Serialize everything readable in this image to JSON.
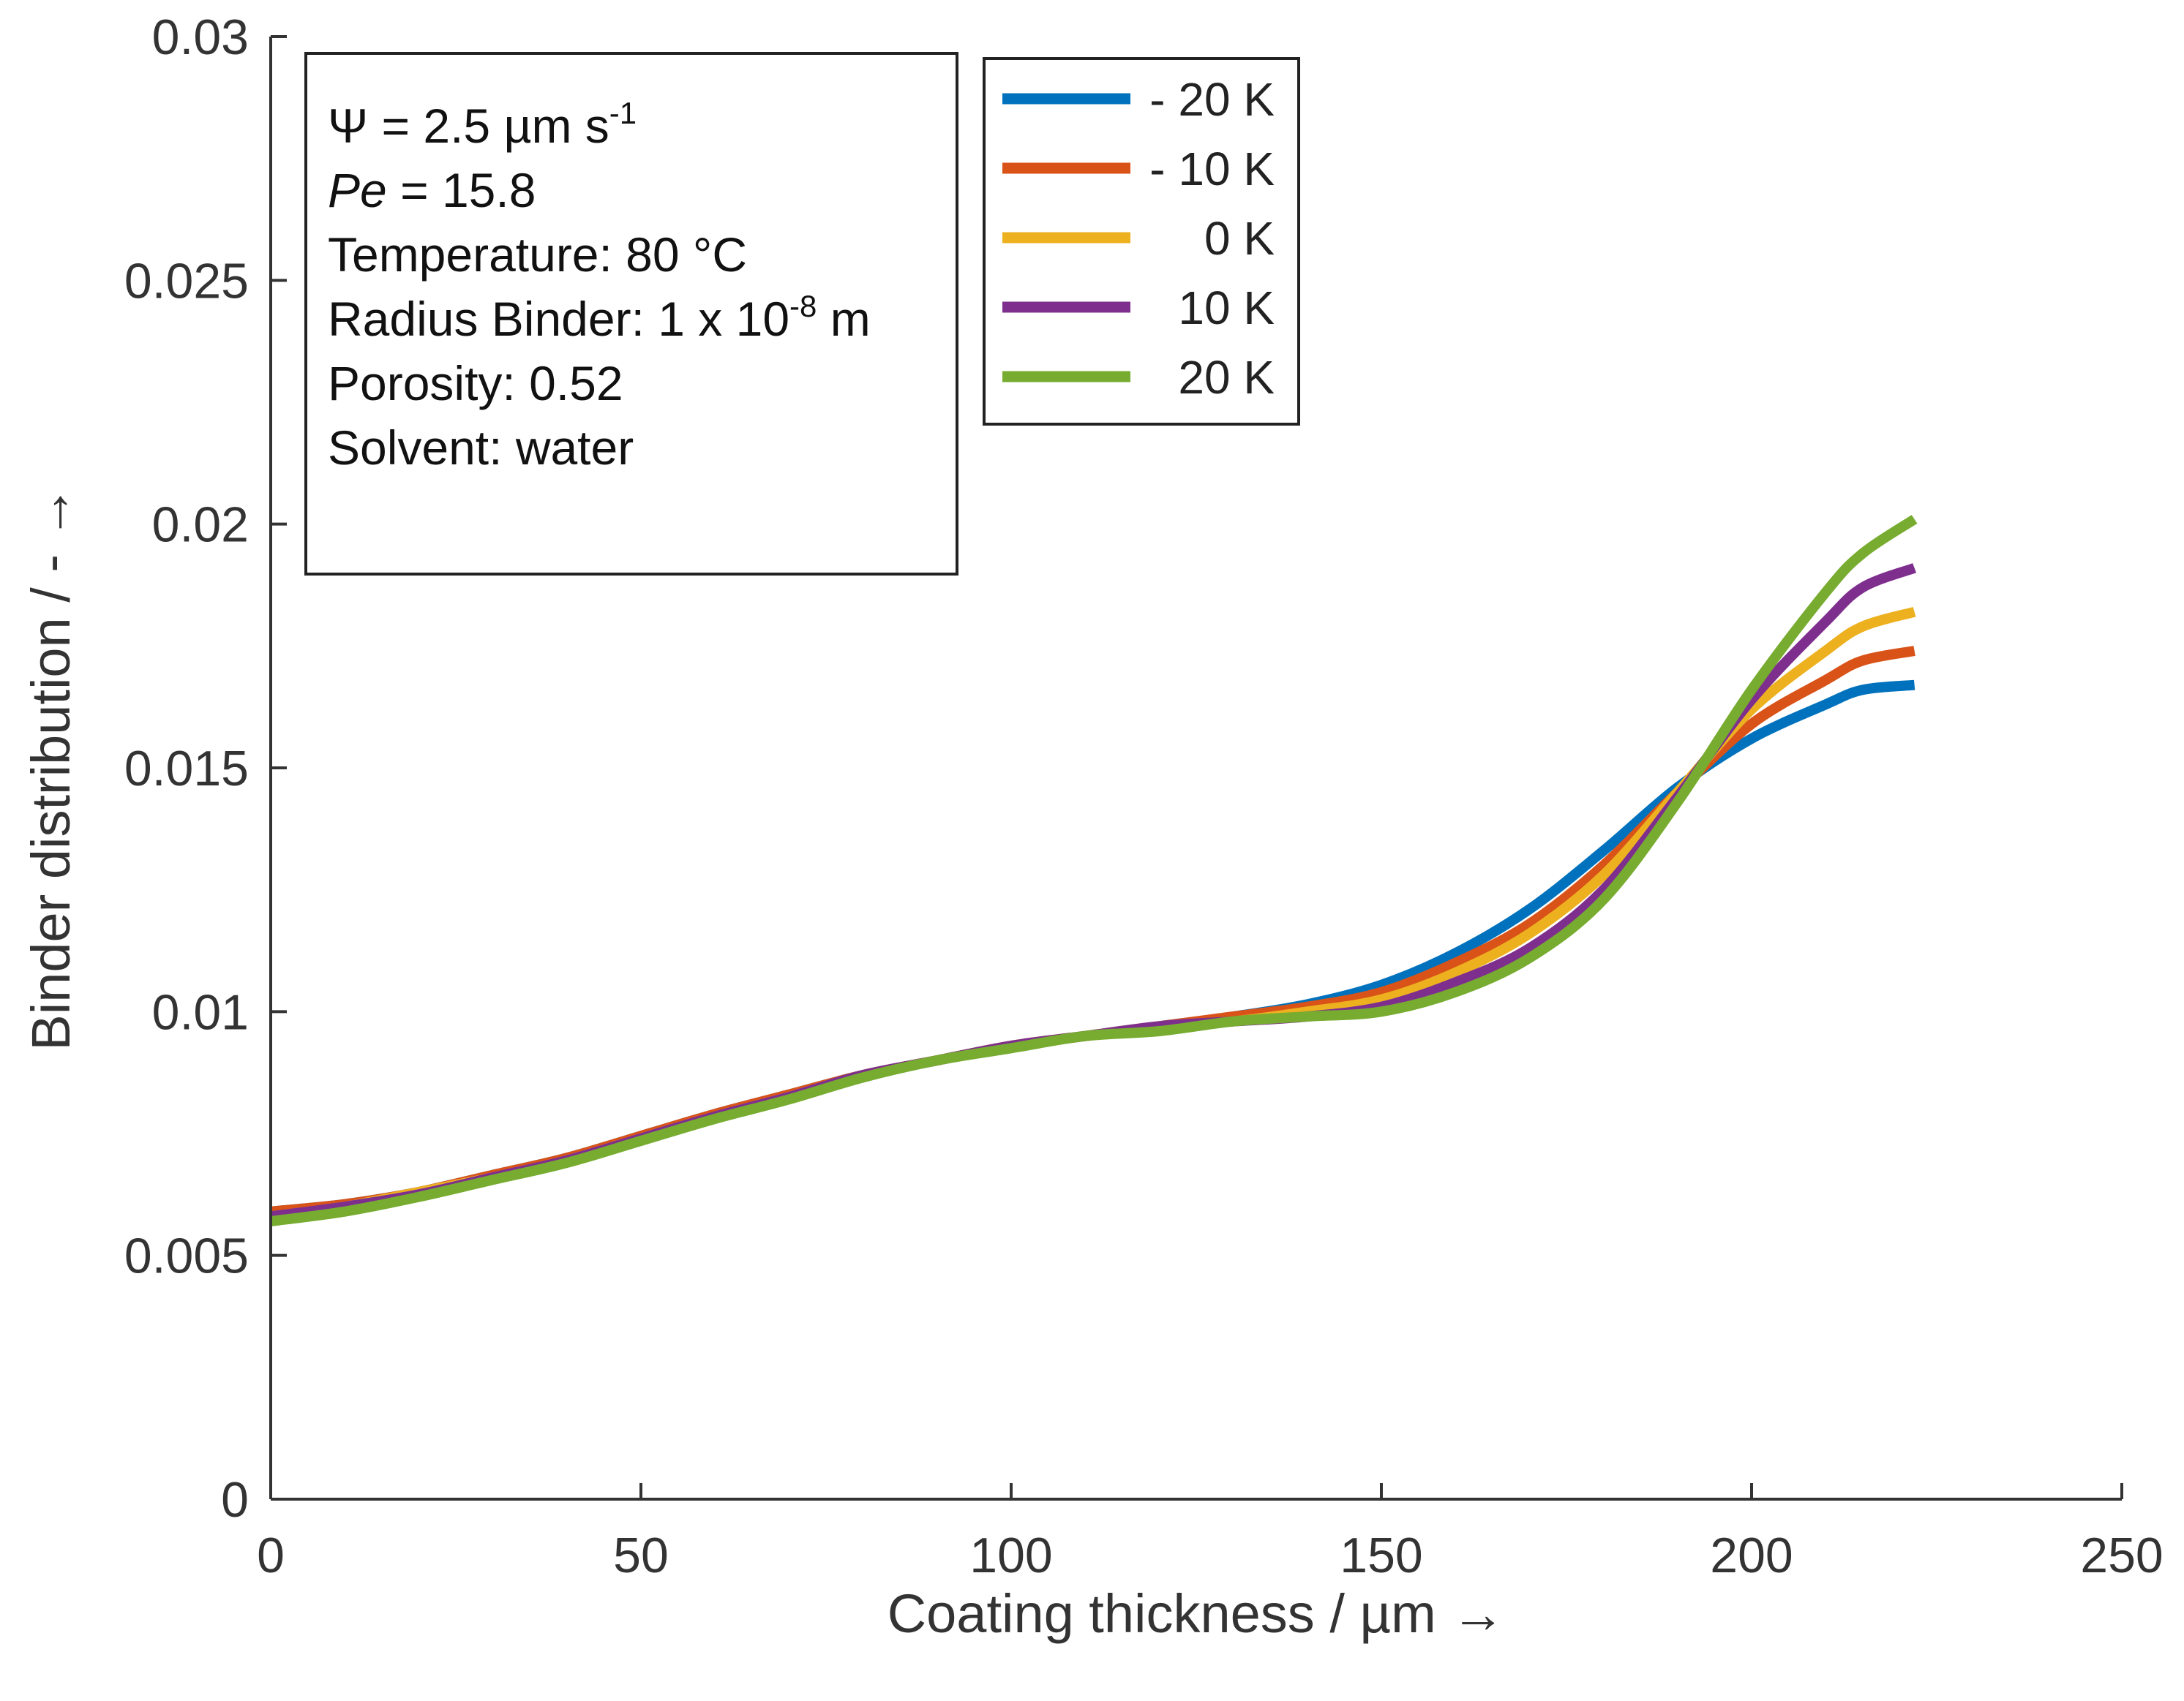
{
  "chart_data": {
    "type": "line",
    "xlabel": "Coating thickness / µm →",
    "ylabel": "Binder distribution / - →",
    "xlim": [
      0,
      250
    ],
    "ylim": [
      0,
      0.03
    ],
    "x_ticks": [
      0,
      50,
      100,
      150,
      200,
      250
    ],
    "x_tick_labels": [
      "0",
      "50",
      "100",
      "150",
      "200",
      "250"
    ],
    "y_ticks": [
      0,
      0.005,
      0.01,
      0.015,
      0.02,
      0.025,
      0.03
    ],
    "y_tick_labels": [
      "0",
      "0.005",
      "0.01",
      "0.015",
      "0.02",
      "0.025",
      "0.03"
    ],
    "grid": false,
    "legend_position": "top-right",
    "x": [
      0,
      10,
      20,
      30,
      40,
      50,
      60,
      70,
      80,
      90,
      100,
      110,
      120,
      130,
      140,
      150,
      160,
      170,
      180,
      190,
      200,
      210,
      215,
      222
    ],
    "series": [
      {
        "name": "- 20 K",
        "color": "#0072BD",
        "values": [
          0.0059,
          0.00605,
          0.0063,
          0.00665,
          0.007,
          0.00745,
          0.0079,
          0.0083,
          0.0087,
          0.009,
          0.0093,
          0.0095,
          0.0097,
          0.0099,
          0.01015,
          0.01055,
          0.0112,
          0.0121,
          0.0133,
          0.0146,
          0.0156,
          0.0163,
          0.0166,
          0.0167
        ]
      },
      {
        "name": "- 10 K",
        "color": "#D95319",
        "values": [
          0.0059,
          0.00605,
          0.0063,
          0.00665,
          0.007,
          0.00745,
          0.0079,
          0.0083,
          0.0087,
          0.009,
          0.0093,
          0.0095,
          0.0097,
          0.0099,
          0.0101,
          0.0104,
          0.011,
          0.0118,
          0.013,
          0.0145,
          0.0159,
          0.0168,
          0.0172,
          0.0174
        ]
      },
      {
        "name": "0 K",
        "color": "#EDB120",
        "values": [
          0.0058,
          0.006,
          0.0063,
          0.0066,
          0.00695,
          0.0074,
          0.00785,
          0.00825,
          0.0087,
          0.009,
          0.0093,
          0.0095,
          0.0097,
          0.0098,
          0.01,
          0.01025,
          0.0108,
          0.0116,
          0.0128,
          0.0145,
          0.0162,
          0.0174,
          0.0179,
          0.0182
        ]
      },
      {
        "name": "10 K",
        "color": "#7E2F8E",
        "values": [
          0.0058,
          0.006,
          0.00625,
          0.0066,
          0.00695,
          0.0074,
          0.00785,
          0.00825,
          0.0087,
          0.009,
          0.0093,
          0.0095,
          0.0097,
          0.0098,
          0.0099,
          0.0101,
          0.0106,
          0.0113,
          0.0125,
          0.0144,
          0.0164,
          0.018,
          0.0187,
          0.0191
        ]
      },
      {
        "name": "20 K",
        "color": "#77AC30",
        "values": [
          0.0057,
          0.0059,
          0.0062,
          0.00655,
          0.0069,
          0.00735,
          0.0078,
          0.0082,
          0.00865,
          0.009,
          0.00925,
          0.0095,
          0.0096,
          0.0098,
          0.0099,
          0.01,
          0.0104,
          0.0111,
          0.0123,
          0.0143,
          0.0166,
          0.0186,
          0.0194,
          0.0201
        ]
      }
    ]
  },
  "annotation": {
    "psi_prefix": "Ψ = 2.5 µm s",
    "psi_exp": "-1",
    "pe_symbol": "Pe",
    "pe_value": " = 15.8",
    "temperature": "Temperature: 80 °C",
    "radius_prefix": "Radius Binder: 1 x 10",
    "radius_exp": "-8",
    "radius_unit": " m",
    "porosity": "Porosity: 0.52",
    "solvent": "Solvent: water"
  }
}
